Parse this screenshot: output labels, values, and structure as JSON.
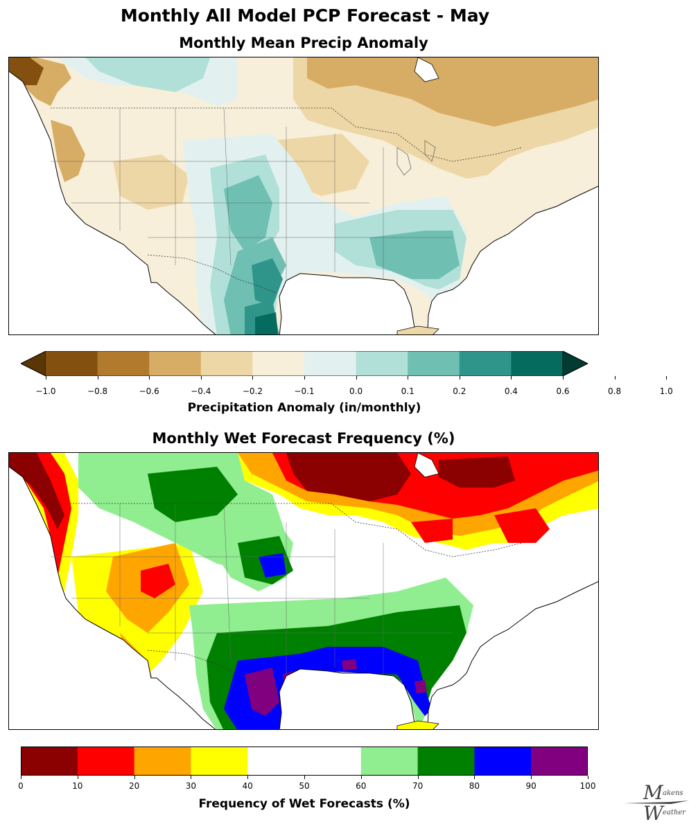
{
  "figure": {
    "title": "Monthly All Model PCP Forecast - May"
  },
  "panel1": {
    "title": "Monthly Mean Precip Anomaly",
    "colorbar": {
      "label": "Precipitation Anomaly (in/monthly)",
      "ticks": [
        "−1.0",
        "−0.8",
        "−0.6",
        "−0.4",
        "−0.2",
        "−0.1",
        "0.0",
        "0.1",
        "0.2",
        "0.4",
        "0.6",
        "0.8",
        "1.0"
      ],
      "colors": [
        "#5a3607",
        "#83500f",
        "#b17a2c",
        "#d7ac65",
        "#eed7a6",
        "#f7efda",
        "#e2f1ef",
        "#b0e0d8",
        "#6fbfb2",
        "#2f9489",
        "#066b5f",
        "#023b32"
      ],
      "extend": "both"
    }
  },
  "panel2": {
    "title": "Monthly Wet Forecast Frequency (%)",
    "colorbar": {
      "label": "Frequency of Wet Forecasts (%)",
      "ticks": [
        "0",
        "10",
        "20",
        "30",
        "40",
        "50",
        "60",
        "70",
        "80",
        "90",
        "100"
      ],
      "colors": [
        "#8b0000",
        "#ff0000",
        "#ffa500",
        "#ffff00",
        "#ffffff",
        "#90ee90",
        "#008000",
        "#0000ff",
        "#800080"
      ],
      "bounds": [
        0,
        10,
        20,
        30,
        40,
        60,
        70,
        80,
        90,
        100
      ]
    }
  },
  "logo": {
    "m_letter": "M",
    "m_rest": "akens",
    "w_letter": "W",
    "w_rest": "eather"
  }
}
